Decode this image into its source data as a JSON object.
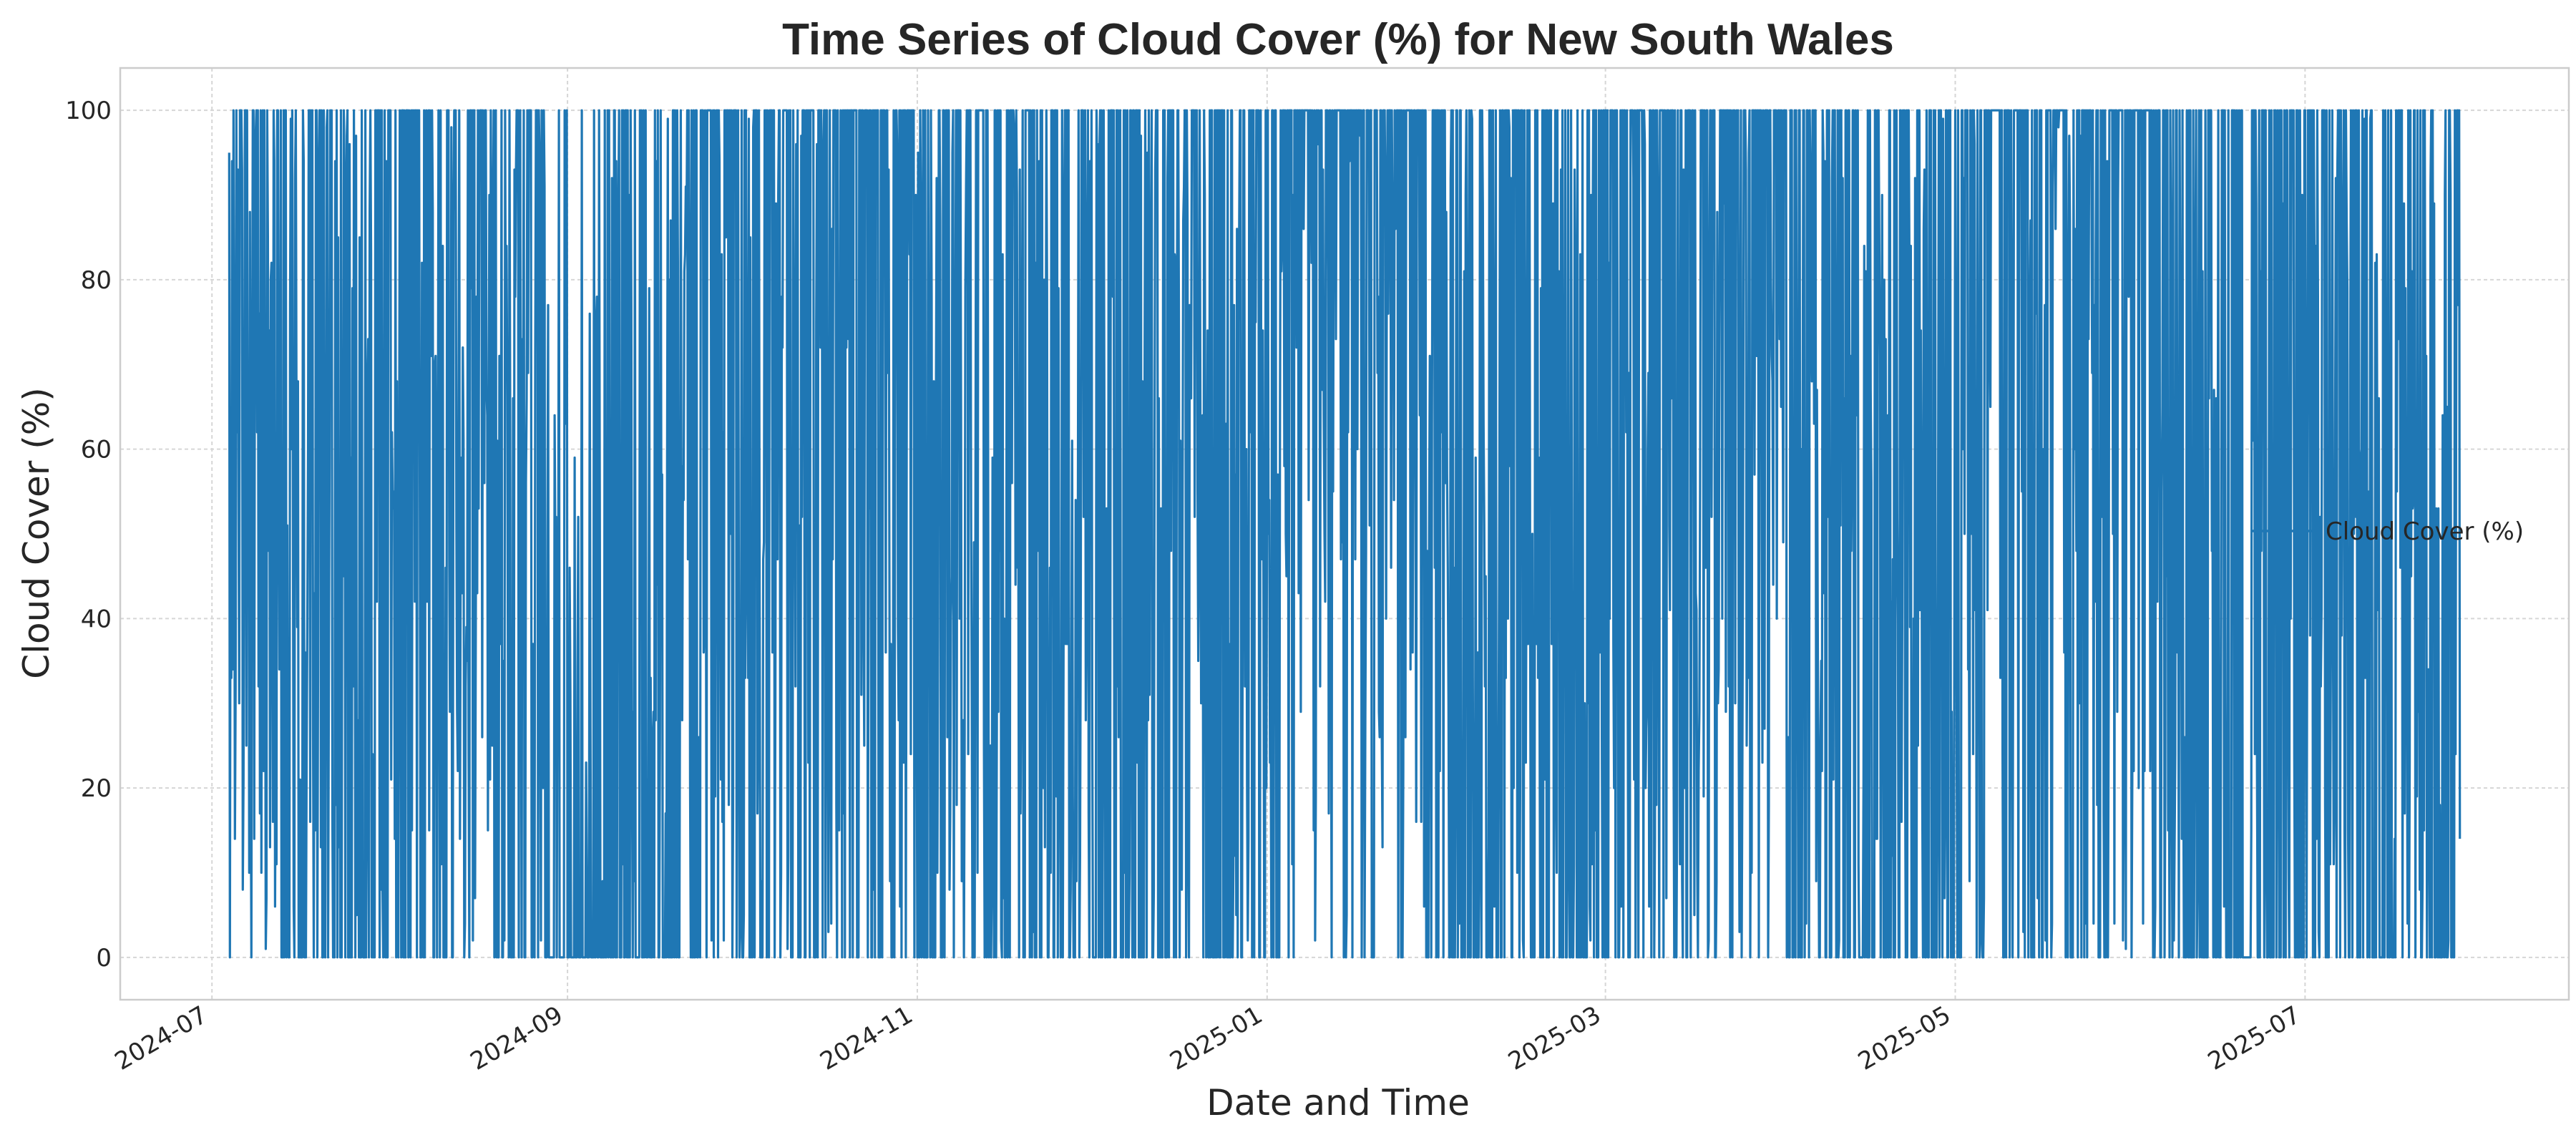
{
  "chart_data": {
    "type": "line",
    "title": "Time Series of Cloud Cover (%) for New South Wales",
    "xlabel": "Date and Time",
    "ylabel": "Cloud Cover (%)",
    "x_range": [
      "2024-06-15",
      "2025-08-16"
    ],
    "ylim": [
      -5,
      105
    ],
    "y_ticks": [
      0,
      20,
      40,
      60,
      80,
      100
    ],
    "x_ticks": [
      "2024-07-01",
      "2024-09-01",
      "2024-11-01",
      "2025-01-01",
      "2025-03-01",
      "2025-05-01",
      "2025-07-01"
    ],
    "x_tick_labels": [
      "2024-07",
      "2024-09",
      "2024-11",
      "2025-01",
      "2025-03",
      "2025-05",
      "2025-07"
    ],
    "grid": true,
    "legend_position": "center-right",
    "series": [
      {
        "name": "Cloud Cover (%)",
        "color": "#1f77b4",
        "x_start": "2024-07-04",
        "x_end": "2025-07-28",
        "sampling": "hourly",
        "values_sample": [
          {
            "x": "2024-07-04",
            "y": 39
          },
          {
            "x": "2024-07-04",
            "y": 95
          },
          {
            "x": "2024-07-05",
            "y": 14
          },
          {
            "x": "2024-07-06",
            "y": 100
          },
          {
            "x": "2024-07-07",
            "y": 25
          },
          {
            "x": "2024-07-09",
            "y": 100
          },
          {
            "x": "2024-07-12",
            "y": 6
          },
          {
            "x": "2024-07-14",
            "y": 0
          },
          {
            "x": "2024-08-05",
            "y": 100
          },
          {
            "x": "2024-08-20",
            "y": 0
          },
          {
            "x": "2024-09-01",
            "y": 0
          },
          {
            "x": "2024-09-05",
            "y": 27
          },
          {
            "x": "2024-09-10",
            "y": 100
          },
          {
            "x": "2024-09-15",
            "y": 0
          },
          {
            "x": "2024-09-20",
            "y": 0
          },
          {
            "x": "2024-09-25",
            "y": 100
          },
          {
            "x": "2024-10-15",
            "y": 100
          },
          {
            "x": "2024-11-01",
            "y": 0
          },
          {
            "x": "2025-01-10",
            "y": 100
          },
          {
            "x": "2025-01-20",
            "y": 100
          },
          {
            "x": "2025-03-20",
            "y": 100
          },
          {
            "x": "2025-04-02",
            "y": 0
          },
          {
            "x": "2025-05-10",
            "y": 100
          },
          {
            "x": "2025-05-25",
            "y": 100
          },
          {
            "x": "2025-06-15",
            "y": 0
          },
          {
            "x": "2025-07-28",
            "y": 14
          }
        ]
      }
    ]
  }
}
